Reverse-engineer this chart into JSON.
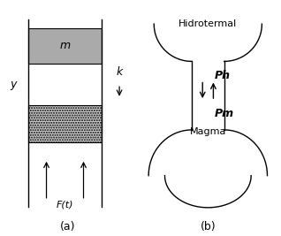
{
  "fig_width": 3.18,
  "fig_height": 2.67,
  "dpi": 100,
  "background_color": "#ffffff",
  "label_a": "(a)",
  "label_b": "(b)",
  "mass_label": "m",
  "spring_label": "k",
  "disp_label": "y",
  "force_label": "F(t)",
  "ph_label": "Ph",
  "pm_label": "Pm",
  "magma_label": "Magma",
  "hidrotermal_label": "Hidrotermal",
  "mass_color": "#aaaaaa",
  "damper_color": "#bbbbbb"
}
